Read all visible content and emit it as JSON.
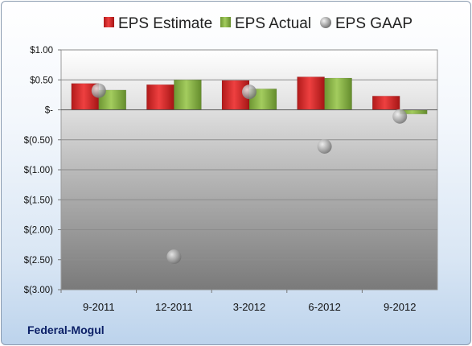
{
  "company": "Federal-Mogul",
  "chart_data": {
    "type": "bar",
    "categories": [
      "9-2011",
      "12-2011",
      "3-2012",
      "6-2012",
      "9-2012"
    ],
    "series": [
      {
        "name": "EPS Estimate",
        "kind": "bar",
        "color": "#d92b2b",
        "values": [
          0.44,
          0.42,
          0.49,
          0.55,
          0.23
        ]
      },
      {
        "name": "EPS Actual",
        "kind": "bar",
        "color": "#8cb848",
        "values": [
          0.33,
          0.5,
          0.35,
          0.53,
          -0.07
        ]
      },
      {
        "name": "EPS GAAP",
        "kind": "marker",
        "color": "#a8a8a8",
        "values": [
          0.32,
          -2.45,
          0.3,
          -0.61,
          -0.11
        ]
      }
    ],
    "y_ticks": [
      "$1.00",
      "$0.50",
      "$-",
      "$(0.50)",
      "$(1.00)",
      "$(1.50)",
      "$(2.00)",
      "$(2.50)",
      "$(3.00)"
    ],
    "y_tick_values": [
      1.0,
      0.5,
      0,
      -0.5,
      -1.0,
      -1.5,
      -2.0,
      -2.5,
      -3.0
    ],
    "ylim": [
      -3.0,
      1.0
    ],
    "grid": true,
    "legend_position": "top"
  }
}
